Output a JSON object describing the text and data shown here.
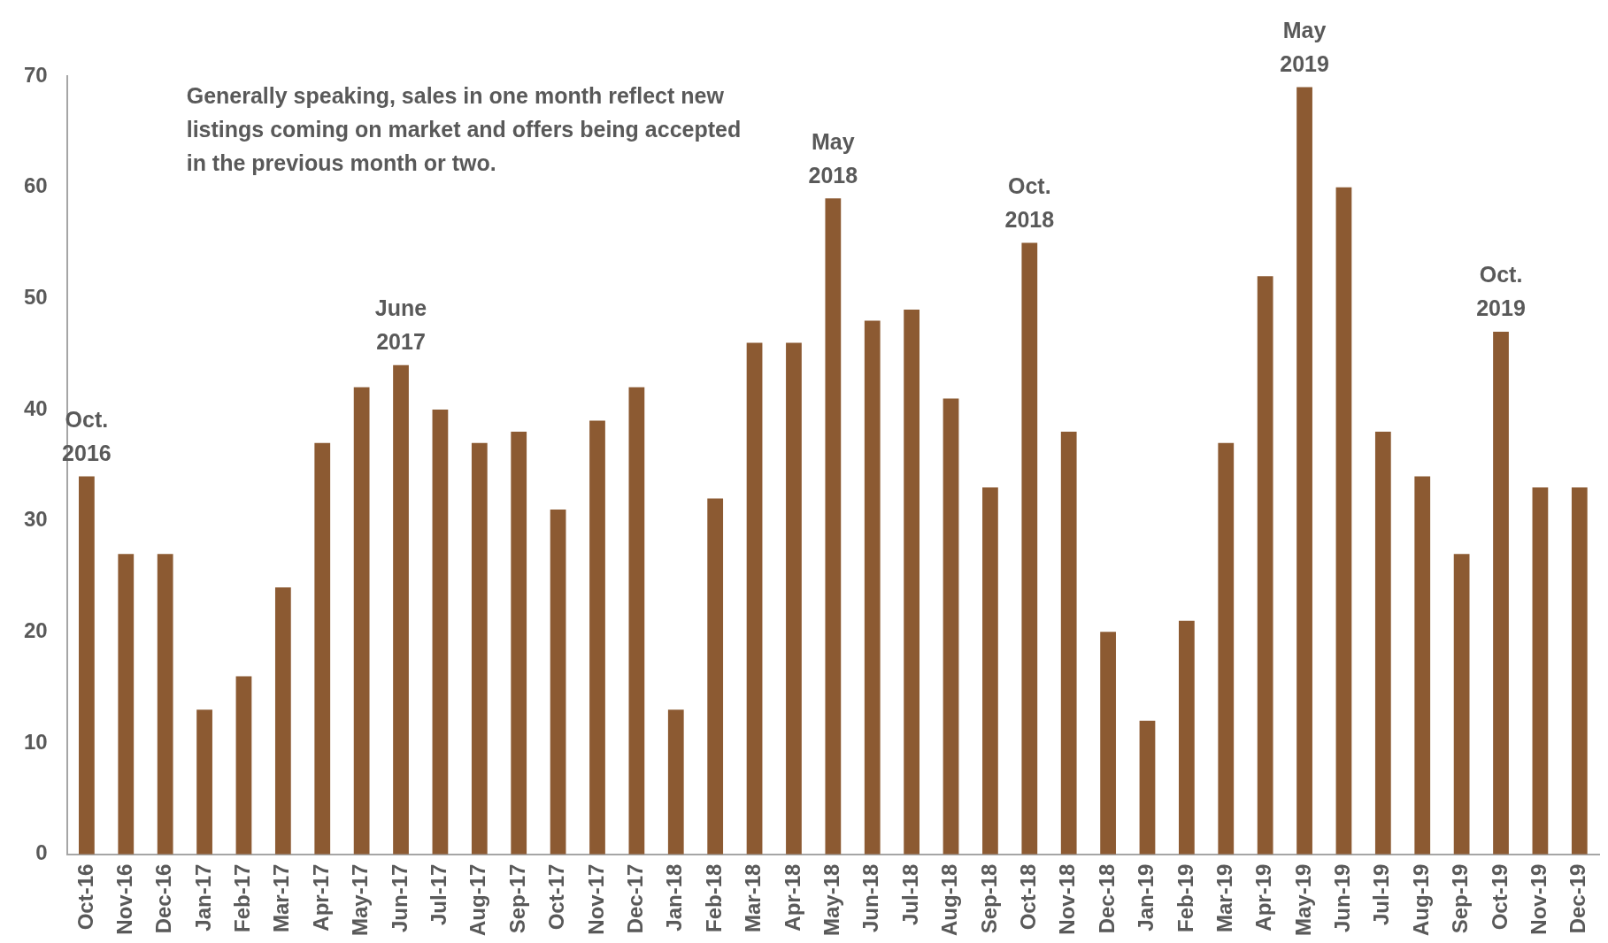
{
  "chart_data": {
    "type": "bar",
    "categories": [
      "Oct-16",
      "Nov-16",
      "Dec-16",
      "Jan-17",
      "Feb-17",
      "Mar-17",
      "Apr-17",
      "May-17",
      "Jun-17",
      "Jul-17",
      "Aug-17",
      "Sep-17",
      "Oct-17",
      "Nov-17",
      "Dec-17",
      "Jan-18",
      "Feb-18",
      "Mar-18",
      "Apr-18",
      "May-18",
      "Jun-18",
      "Jul-18",
      "Aug-18",
      "Sep-18",
      "Oct-18",
      "Nov-18",
      "Dec-18",
      "Jan-19",
      "Feb-19",
      "Mar-19",
      "Apr-19",
      "May-19",
      "Jun-19",
      "Jul-19",
      "Aug-19",
      "Sep-19",
      "Oct-19",
      "Nov-19",
      "Dec-19"
    ],
    "values": [
      34,
      27,
      27,
      13,
      16,
      24,
      37,
      42,
      44,
      40,
      37,
      38,
      31,
      39,
      42,
      13,
      32,
      46,
      46,
      59,
      48,
      49,
      41,
      33,
      55,
      38,
      20,
      12,
      21,
      37,
      52,
      69,
      60,
      38,
      34,
      27,
      47,
      33,
      33
    ],
    "color": "#8c5a32",
    "ylim": [
      0,
      70
    ],
    "yticks": [
      0,
      10,
      20,
      30,
      40,
      50,
      60,
      70
    ],
    "grid": false,
    "legend": false,
    "annotations": [
      "Generally speaking, sales in one month reflect new listings coming on market and offers being accepted in the previous month or two.",
      {
        "text": "Oct. 2016",
        "x": "Oct-16",
        "y": 34
      },
      {
        "text": "June 2017",
        "x": "Jun-17",
        "y": 44
      },
      {
        "text": "May 2018",
        "x": "May-18",
        "y": 59
      },
      {
        "text": "Oct. 2018",
        "x": "Oct-18",
        "y": 55
      },
      {
        "text": "May 2019",
        "x": "May-19",
        "y": 69
      },
      {
        "text": "Oct. 2019",
        "x": "Oct-19",
        "y": 47
      }
    ]
  }
}
